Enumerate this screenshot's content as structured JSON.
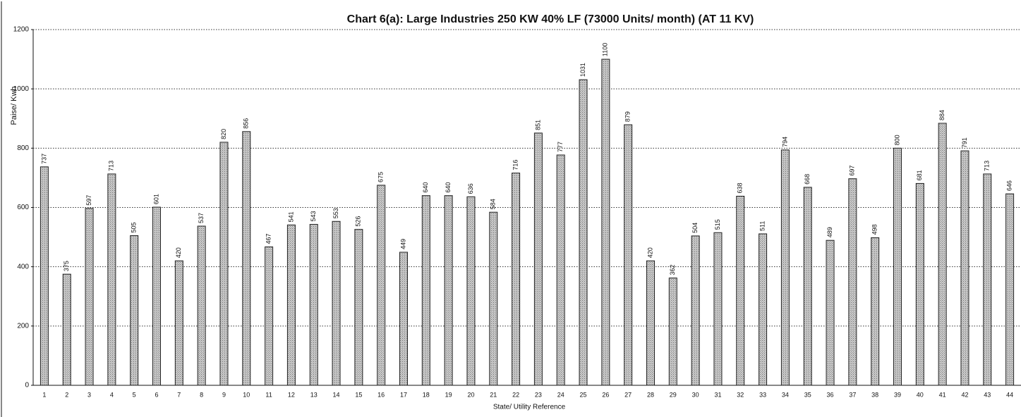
{
  "chart_data": {
    "type": "bar",
    "title": "Chart 6(a): Large Industries 250 KW  40% LF (73000 Units/ month)  (AT 11 KV)",
    "x_label": "State/ Utility  Reference",
    "y_label": "Paise/ Kwh",
    "categories": [
      "1",
      "2",
      "3",
      "4",
      "5",
      "6",
      "7",
      "8",
      "9",
      "10",
      "11",
      "12",
      "13",
      "14",
      "15",
      "16",
      "17",
      "18",
      "19",
      "20",
      "21",
      "22",
      "23",
      "24",
      "25",
      "26",
      "27",
      "28",
      "29",
      "30",
      "31",
      "32",
      "33",
      "34",
      "35",
      "36",
      "37",
      "38",
      "39",
      "40",
      "41",
      "42",
      "43",
      "44"
    ],
    "values": [
      737,
      375,
      597,
      713,
      505,
      601,
      420,
      537,
      820,
      856,
      467,
      541,
      543,
      553,
      526,
      675,
      449,
      640,
      640,
      636,
      584,
      716,
      851,
      777,
      1031,
      1100,
      879,
      420,
      362,
      504,
      515,
      638,
      511,
      794,
      668,
      489,
      697,
      498,
      800,
      681,
      884,
      791,
      713,
      646
    ],
    "color": "#b8b8b8",
    "ylim": [
      0,
      1200
    ],
    "yticks": [
      0,
      200,
      400,
      600,
      800,
      1000,
      1200
    ],
    "grid": true
  }
}
